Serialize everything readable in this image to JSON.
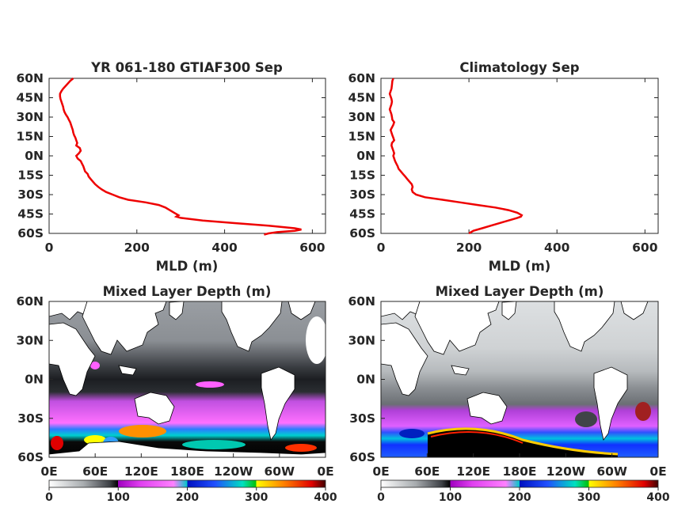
{
  "colors": {
    "profile_line": "#ee0000",
    "axis": "#262626",
    "land": "#ffffff",
    "coast": "#000000"
  },
  "colorbar_colormap": [
    [
      0,
      "#ffffff"
    ],
    [
      0.125,
      "#a8acaf"
    ],
    [
      0.22,
      "#3c3f44"
    ],
    [
      0.25,
      "#000000"
    ],
    [
      0.25,
      "#a000c0"
    ],
    [
      0.33,
      "#e040f0"
    ],
    [
      0.45,
      "#ff80ff"
    ],
    [
      0.5,
      "#00c8c8"
    ],
    [
      0.5,
      "#0010c0"
    ],
    [
      0.6,
      "#2050ff"
    ],
    [
      0.7,
      "#00e0c0"
    ],
    [
      0.75,
      "#00c000"
    ],
    [
      0.75,
      "#ffff00"
    ],
    [
      0.85,
      "#ff8000"
    ],
    [
      0.95,
      "#e00000"
    ],
    [
      1,
      "#400000"
    ]
  ],
  "chart_data": [
    {
      "type": "line",
      "title": "YR 061-180 GTIAF300 Sep",
      "xlabel": "MLD (m)",
      "ylabel": "",
      "xlim": [
        0,
        630
      ],
      "ylim": [
        -62,
        60
      ],
      "xticks": [
        "0",
        "200",
        "400",
        "600"
      ],
      "xtick_values": [
        0,
        200,
        400,
        600
      ],
      "yticks": [
        "60N",
        "45N",
        "30N",
        "15N",
        "0N",
        "15S",
        "30S",
        "45S",
        "60S"
      ],
      "ytick_values": [
        60,
        45,
        30,
        15,
        0,
        -15,
        -30,
        -45,
        -60
      ],
      "series": [
        {
          "lat": [
            60,
            58,
            55,
            52,
            50,
            48,
            46,
            44,
            42,
            40,
            38,
            36,
            34,
            32,
            30,
            28,
            26,
            24,
            22,
            20,
            18,
            16,
            14,
            12,
            10,
            8,
            6,
            4,
            2,
            0,
            -2,
            -4,
            -6,
            -8,
            -10,
            -12,
            -14,
            -16,
            -18,
            -20,
            -22,
            -24,
            -26,
            -28,
            -30,
            -32,
            -34,
            -36,
            -38,
            -40,
            -42,
            -44,
            -46,
            -47,
            -48,
            -50,
            -52,
            -54,
            -56,
            -57,
            -58,
            -59,
            -60,
            -61
          ],
          "mld": [
            55,
            48,
            40,
            32,
            28,
            25,
            25,
            26,
            28,
            30,
            32,
            33,
            35,
            38,
            42,
            45,
            48,
            50,
            52,
            54,
            55,
            57,
            60,
            62,
            64,
            62,
            70,
            72,
            68,
            62,
            65,
            72,
            75,
            78,
            80,
            82,
            88,
            90,
            95,
            100,
            105,
            112,
            120,
            130,
            145,
            160,
            180,
            220,
            250,
            265,
            275,
            285,
            295,
            290,
            300,
            350,
            420,
            500,
            560,
            575,
            560,
            520,
            500,
            490
          ]
        }
      ]
    },
    {
      "type": "line",
      "title": "Climatology Sep",
      "xlabel": "MLD (m)",
      "ylabel": "",
      "xlim": [
        0,
        630
      ],
      "ylim": [
        -62,
        60
      ],
      "xticks": [
        "0",
        "200",
        "400",
        "600"
      ],
      "xtick_values": [
        0,
        200,
        400,
        600
      ],
      "yticks": [
        "60N",
        "45N",
        "30N",
        "15N",
        "0N",
        "15S",
        "30S",
        "45S",
        "60S"
      ],
      "ytick_values": [
        60,
        45,
        30,
        15,
        0,
        -15,
        -30,
        -45,
        -60
      ],
      "series": [
        {
          "lat": [
            60,
            58,
            55,
            52,
            50,
            48,
            46,
            44,
            42,
            40,
            38,
            36,
            34,
            32,
            30,
            28,
            26,
            24,
            22,
            20,
            18,
            16,
            14,
            12,
            10,
            8,
            6,
            4,
            2,
            0,
            -2,
            -4,
            -6,
            -8,
            -10,
            -12,
            -14,
            -16,
            -18,
            -20,
            -22,
            -24,
            -26,
            -28,
            -30,
            -32,
            -34,
            -36,
            -38,
            -40,
            -42,
            -44,
            -46,
            -47,
            -48,
            -50,
            -52,
            -54,
            -56,
            -58,
            -60
          ],
          "mld": [
            28,
            26,
            25,
            24,
            22,
            20,
            22,
            24,
            25,
            24,
            22,
            20,
            22,
            24,
            25,
            26,
            30,
            28,
            25,
            22,
            24,
            26,
            28,
            30,
            25,
            24,
            26,
            28,
            30,
            28,
            30,
            32,
            35,
            38,
            40,
            45,
            50,
            55,
            60,
            65,
            70,
            72,
            70,
            72,
            80,
            100,
            140,
            180,
            220,
            260,
            290,
            310,
            320,
            318,
            310,
            290,
            270,
            250,
            230,
            210,
            200
          ]
        }
      ]
    },
    {
      "type": "heatmap",
      "title": "Mixed Layer Depth (m)",
      "xticks": [
        "0E",
        "60E",
        "120E",
        "180E",
        "120W",
        "60W",
        "0E"
      ],
      "yticks": [
        "60N",
        "30N",
        "0N",
        "30S",
        "60S"
      ],
      "colorbar_ticks": [
        "0",
        "100",
        "200",
        "300",
        "400"
      ],
      "colorbar_range": [
        0,
        400
      ]
    },
    {
      "type": "heatmap",
      "title": "Mixed Layer Depth (m)",
      "xticks": [
        "0E",
        "60E",
        "120E",
        "180E",
        "120W",
        "60W",
        "0E"
      ],
      "yticks": [
        "60N",
        "30N",
        "0N",
        "30S",
        "60S"
      ],
      "colorbar_ticks": [
        "0",
        "100",
        "200",
        "300",
        "400"
      ],
      "colorbar_range": [
        0,
        400
      ]
    }
  ]
}
